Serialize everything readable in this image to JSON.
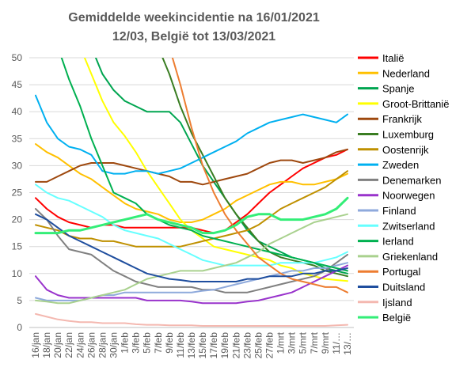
{
  "chart_data": {
    "type": "line",
    "title": "Gemiddelde weekincidentie  na 16/01/2021",
    "subtitle": "12/03, België tot 13/03/2021",
    "xlabel": "",
    "ylabel": "",
    "ylim": [
      0,
      50
    ],
    "yticks": [
      0,
      5,
      10,
      15,
      20,
      25,
      30,
      35,
      40,
      45,
      50
    ],
    "grid": true,
    "legend_position": "right",
    "x": [
      "16/jan",
      "18/jan",
      "20/jan",
      "22/jan",
      "24/jan",
      "26/jan",
      "28/jan",
      "30/jan",
      "1/feb",
      "3/feb",
      "5/feb",
      "7/feb",
      "9/feb",
      "11/feb",
      "13/feb",
      "15/feb",
      "17/feb",
      "19/feb",
      "21/feb",
      "23/feb",
      "25/feb",
      "27/feb",
      "1/mrt",
      "3/mrt",
      "5/mrt",
      "7/mrt",
      "9/mrt",
      "11/mrt",
      "13/mrt"
    ],
    "x_tick_labels": [
      "16/jan",
      "18/jan",
      "20/jan",
      "22/jan",
      "24/jan",
      "26/jan",
      "28/jan",
      "30/jan",
      "1/feb",
      "3/feb",
      "5/feb",
      "7/feb",
      "9/feb",
      "11/feb",
      "13/feb",
      "15/feb",
      "17/feb",
      "19/feb",
      "21/feb",
      "23/feb",
      "25/feb",
      "27/feb",
      "1/mrt",
      "3/mrt",
      "5/mrt",
      "7/mrt",
      "9/mrt",
      "11/…",
      "13/…"
    ],
    "series": [
      {
        "name": "Italië",
        "color": "#FF0000",
        "values": [
          24,
          22,
          20.5,
          19.5,
          19,
          18.5,
          19,
          19,
          18.5,
          18.5,
          18.5,
          18.5,
          18.5,
          18.5,
          18.5,
          18,
          17.5,
          18,
          19.5,
          21,
          23,
          25,
          26.5,
          28,
          29.5,
          30.5,
          31.5,
          32,
          33
        ]
      },
      {
        "name": "Nederland",
        "color": "#FFC000",
        "values": [
          34,
          32.5,
          31.5,
          30,
          28.5,
          27.5,
          26,
          24.5,
          23,
          22,
          21.5,
          21,
          20,
          19.5,
          19.5,
          20,
          21,
          22,
          23.5,
          24.5,
          25.5,
          26.5,
          27,
          27,
          26.5,
          26.5,
          27,
          27.5,
          28.5
        ]
      },
      {
        "name": "Spanje",
        "color": "#00A550",
        "values": [
          null,
          null,
          null,
          null,
          null,
          52,
          47,
          44,
          42,
          41,
          40,
          40,
          40,
          38,
          34,
          30,
          27,
          24,
          21,
          18,
          16,
          15,
          14,
          13,
          12.5,
          12,
          11,
          10.5,
          10
        ]
      },
      {
        "name": "Groot-Brittanië",
        "color": "#FFFF00",
        "values": [
          null,
          null,
          null,
          null,
          52,
          47,
          42,
          38,
          35.5,
          32.5,
          29,
          26,
          23,
          20,
          18,
          16.5,
          15,
          14.5,
          14,
          13.5,
          13,
          12.5,
          11.5,
          11,
          10,
          9.5,
          9,
          8.8,
          8.6
        ]
      },
      {
        "name": "Frankrijk",
        "color": "#9E480E",
        "values": [
          27,
          27,
          28,
          29,
          30,
          30.5,
          30.5,
          30.5,
          30,
          29.5,
          29,
          28.5,
          28,
          27,
          27,
          26.5,
          27,
          27.5,
          28,
          28.5,
          29.5,
          30.5,
          31,
          31,
          30.5,
          31,
          31.5,
          32.5,
          33
        ]
      },
      {
        "name": "Luxemburg",
        "color": "#3A7D22",
        "values": [
          null,
          null,
          null,
          null,
          null,
          null,
          null,
          null,
          null,
          null,
          null,
          52,
          47,
          41,
          36,
          32,
          28,
          24,
          21,
          18.5,
          16,
          14,
          13,
          12.5,
          12,
          11.5,
          10.5,
          10,
          9.5
        ]
      },
      {
        "name": "Oostenrijk",
        "color": "#BF9000",
        "values": [
          19,
          18.5,
          18,
          17,
          16.5,
          16.5,
          16,
          16,
          15.5,
          15,
          15,
          15,
          15,
          15,
          15.5,
          16,
          16.5,
          17,
          17.5,
          18,
          19,
          20.5,
          22,
          23,
          24,
          25,
          26,
          27.5,
          29
        ]
      },
      {
        "name": "Zweden",
        "color": "#00B0F0",
        "values": [
          43,
          38,
          35,
          33.5,
          33,
          32,
          29,
          28.5,
          28.5,
          29,
          29,
          28.5,
          29,
          29.5,
          30.5,
          31.5,
          32.5,
          33.5,
          34.5,
          36,
          37,
          38,
          38.5,
          39,
          39.5,
          39,
          38.5,
          38,
          39.5
        ]
      },
      {
        "name": "Denemarken",
        "color": "#808080",
        "values": [
          22,
          20,
          17,
          14.5,
          14,
          13.5,
          12,
          10.5,
          9.5,
          8.5,
          8,
          7.5,
          7.5,
          7.5,
          7.5,
          7,
          7,
          6.5,
          6.5,
          6.5,
          7,
          7.5,
          8,
          8.5,
          9,
          9.5,
          10.5,
          12,
          13.5
        ]
      },
      {
        "name": "Noorwegen",
        "color": "#9933CC",
        "values": [
          9.5,
          7,
          6,
          5.5,
          5.5,
          5.5,
          5.5,
          5.5,
          5.5,
          5.5,
          5,
          5,
          5,
          5,
          4.8,
          4.5,
          4.5,
          4.5,
          4.5,
          4.8,
          5,
          5.5,
          6,
          6.5,
          7.5,
          8.5,
          9.5,
          10.5,
          11.5
        ]
      },
      {
        "name": "Finland",
        "color": "#8FAADC",
        "values": [
          5.5,
          5,
          5,
          5,
          5,
          5.5,
          6,
          6,
          6.5,
          6.5,
          6.5,
          6.5,
          6.5,
          6.5,
          6.5,
          6.8,
          7,
          7.5,
          8,
          8.5,
          9,
          9.5,
          10,
          10.5,
          10.5,
          11,
          11,
          11.5,
          12
        ]
      },
      {
        "name": "Zwitserland",
        "color": "#66FFFF",
        "values": [
          26.5,
          25,
          24,
          23.5,
          22.5,
          21.5,
          20.5,
          19,
          18,
          17.5,
          17,
          16.5,
          15.5,
          14.5,
          13.5,
          12.5,
          12,
          11.5,
          11.5,
          11.5,
          11.5,
          11.5,
          12,
          12,
          12,
          12,
          12.5,
          13,
          14
        ]
      },
      {
        "name": "Ierland",
        "color": "#00B050",
        "values": [
          null,
          null,
          52,
          46,
          41,
          35,
          30,
          25,
          24,
          23,
          21,
          20,
          19,
          18.5,
          18,
          17,
          16.5,
          16,
          15.5,
          15,
          14.5,
          14,
          13.5,
          13,
          12.5,
          12,
          11.5,
          11,
          10.5
        ]
      },
      {
        "name": "Griekenland",
        "color": "#A9D18E",
        "values": [
          5,
          4.8,
          4.5,
          4.5,
          5,
          5.5,
          6,
          6.5,
          7,
          8,
          9,
          9.5,
          10,
          10.5,
          10.5,
          10.5,
          11,
          11.5,
          12,
          13,
          14,
          15.5,
          16.5,
          17.5,
          18.5,
          19.5,
          20,
          20.5,
          21
        ]
      },
      {
        "name": "Portugal",
        "color": "#ED7D31",
        "values": [
          null,
          null,
          null,
          null,
          null,
          null,
          null,
          null,
          null,
          null,
          null,
          null,
          52,
          45,
          37,
          30,
          25,
          21,
          18,
          15.5,
          13,
          11.5,
          10,
          9,
          8.5,
          8,
          7.5,
          7.5,
          6.5
        ]
      },
      {
        "name": "Duitsland",
        "color": "#1F4E9E",
        "values": [
          21,
          20,
          18.5,
          17,
          16,
          15,
          14,
          13,
          12,
          11,
          10,
          9.5,
          9,
          8.8,
          8.5,
          8.5,
          8.5,
          8.5,
          8.5,
          9,
          9,
          9.5,
          9.5,
          9.5,
          10,
          10,
          10.5,
          10.5,
          11
        ]
      },
      {
        "name": "Ijsland",
        "color": "#F4B8B0",
        "values": [
          2.5,
          2,
          1.5,
          1.2,
          1,
          1,
          0.8,
          0.8,
          0.8,
          0.6,
          0.5,
          0.5,
          0.4,
          0.4,
          0.4,
          0.3,
          0.3,
          0.3,
          0.3,
          0.3,
          0.3,
          0.3,
          0.3,
          0.3,
          0.3,
          0.3,
          0.3,
          0.4,
          0.5
        ]
      },
      {
        "name": "België",
        "color": "#33EE77",
        "values": [
          17.5,
          17.5,
          17.5,
          18,
          18,
          18.5,
          19,
          19.5,
          20,
          20.5,
          21,
          20,
          19.5,
          19,
          18.5,
          17.5,
          17.5,
          18,
          19,
          20.5,
          21,
          21,
          20,
          20,
          20,
          20.5,
          21,
          22,
          24
        ]
      }
    ]
  }
}
